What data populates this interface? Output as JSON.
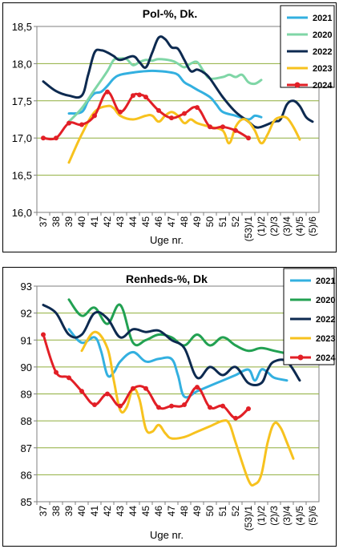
{
  "chart_data": [
    {
      "type": "line",
      "title": "Pol-%, Dk.",
      "xlabel": "Uge nr.",
      "ylabel": "",
      "ylim": [
        16.0,
        18.5
      ],
      "yticks": [
        "16,0",
        "16,5",
        "17,0",
        "17,5",
        "18,0",
        "18,5"
      ],
      "categories": [
        "37",
        "38",
        "39",
        "40",
        "41",
        "42",
        "43",
        "44",
        "45",
        "46",
        "47",
        "48",
        "49",
        "50",
        "51",
        "52",
        "(53)/1",
        "(1)/2",
        "(2)/3",
        "(3)/4",
        "(4)/5",
        "(5)/6"
      ],
      "legend_position": "top-right",
      "grid": true,
      "series": [
        {
          "name": "2021",
          "color": "#33b0e0",
          "marker": false,
          "points": [
            [
              2,
              17.33
            ],
            [
              3,
              17.35
            ],
            [
              3.5,
              17.5
            ],
            [
              4,
              17.6
            ],
            [
              4.5,
              17.62
            ],
            [
              5,
              17.7
            ],
            [
              5.5,
              17.8
            ],
            [
              6,
              17.85
            ],
            [
              7,
              17.88
            ],
            [
              8,
              17.9
            ],
            [
              9,
              17.9
            ],
            [
              10,
              17.88
            ],
            [
              10.5,
              17.85
            ],
            [
              11,
              17.75
            ],
            [
              11.5,
              17.7
            ],
            [
              12,
              17.65
            ],
            [
              13,
              17.55
            ],
            [
              13.5,
              17.45
            ],
            [
              14,
              17.35
            ],
            [
              15,
              17.3
            ],
            [
              16,
              17.25
            ],
            [
              16.5,
              17.3
            ],
            [
              17,
              17.28
            ]
          ]
        },
        {
          "name": "2020",
          "color": "#7fd6a6",
          "marker": false,
          "points": [
            [
              2,
              17.22
            ],
            [
              3,
              17.4
            ],
            [
              4,
              17.65
            ],
            [
              5,
              17.9
            ],
            [
              5.5,
              18.05
            ],
            [
              6,
              18.07
            ],
            [
              6.5,
              18.06
            ],
            [
              7,
              17.98
            ],
            [
              7.5,
              18.02
            ],
            [
              8,
              18.05
            ],
            [
              8.5,
              18.04
            ],
            [
              9,
              18.06
            ],
            [
              10,
              18.04
            ],
            [
              10.5,
              18.0
            ],
            [
              11,
              17.95
            ],
            [
              11.5,
              18.0
            ],
            [
              12,
              18.02
            ],
            [
              12.5,
              17.9
            ],
            [
              13,
              17.8
            ],
            [
              14,
              17.82
            ],
            [
              14.5,
              17.85
            ],
            [
              15,
              17.82
            ],
            [
              15.5,
              17.85
            ],
            [
              16,
              17.75
            ],
            [
              16.5,
              17.73
            ],
            [
              17,
              17.78
            ]
          ]
        },
        {
          "name": "2022",
          "color": "#0d2a50",
          "marker": false,
          "points": [
            [
              0,
              17.76
            ],
            [
              1,
              17.63
            ],
            [
              2,
              17.57
            ],
            [
              3,
              17.57
            ],
            [
              3.5,
              17.85
            ],
            [
              4,
              18.15
            ],
            [
              4.5,
              18.18
            ],
            [
              5,
              18.15
            ],
            [
              5.5,
              18.1
            ],
            [
              6,
              18.05
            ],
            [
              7,
              18.1
            ],
            [
              7.5,
              18.02
            ],
            [
              8,
              17.95
            ],
            [
              8.5,
              18.15
            ],
            [
              9,
              18.35
            ],
            [
              9.5,
              18.33
            ],
            [
              10,
              18.22
            ],
            [
              10.5,
              18.2
            ],
            [
              11,
              18.05
            ],
            [
              11.5,
              17.9
            ],
            [
              12,
              17.92
            ],
            [
              12.5,
              17.88
            ],
            [
              13,
              17.8
            ],
            [
              14,
              17.55
            ],
            [
              15,
              17.35
            ],
            [
              16,
              17.22
            ],
            [
              16.5,
              17.15
            ],
            [
              17,
              17.15
            ],
            [
              18,
              17.22
            ],
            [
              18.5,
              17.25
            ],
            [
              19,
              17.45
            ],
            [
              19.5,
              17.5
            ],
            [
              20,
              17.43
            ],
            [
              20.5,
              17.28
            ],
            [
              21,
              17.22
            ]
          ]
        },
        {
          "name": "2023",
          "color": "#f7c21e",
          "marker": false,
          "points": [
            [
              2,
              16.67
            ],
            [
              3,
              17.05
            ],
            [
              4,
              17.35
            ],
            [
              5,
              17.43
            ],
            [
              5.5,
              17.4
            ],
            [
              6,
              17.3
            ],
            [
              7,
              17.25
            ],
            [
              8,
              17.3
            ],
            [
              8.5,
              17.3
            ],
            [
              9,
              17.22
            ],
            [
              9.5,
              17.3
            ],
            [
              10,
              17.35
            ],
            [
              10.5,
              17.3
            ],
            [
              11,
              17.2
            ],
            [
              11.5,
              17.25
            ],
            [
              12,
              17.2
            ],
            [
              13,
              17.15
            ],
            [
              14,
              17.1
            ],
            [
              14.5,
              16.93
            ],
            [
              15,
              17.15
            ],
            [
              15.5,
              17.25
            ],
            [
              16,
              17.22
            ],
            [
              16.5,
              17.1
            ],
            [
              17,
              16.93
            ],
            [
              17.5,
              17.05
            ],
            [
              18,
              17.23
            ],
            [
              18.5,
              17.28
            ],
            [
              19,
              17.27
            ],
            [
              19.5,
              17.15
            ],
            [
              20,
              16.98
            ]
          ]
        },
        {
          "name": "2024",
          "color": "#e21f26",
          "marker": true,
          "points": [
            [
              0,
              17.0
            ],
            [
              1,
              17.0
            ],
            [
              2,
              17.2
            ],
            [
              3,
              17.18
            ],
            [
              4,
              17.3
            ],
            [
              5,
              17.62
            ],
            [
              6,
              17.35
            ],
            [
              7,
              17.57
            ],
            [
              7.5,
              17.58
            ],
            [
              8,
              17.55
            ],
            [
              9,
              17.37
            ],
            [
              10,
              17.27
            ],
            [
              11,
              17.33
            ],
            [
              12,
              17.41
            ],
            [
              13,
              17.15
            ],
            [
              14,
              17.15
            ],
            [
              15,
              17.1
            ],
            [
              16,
              17.0
            ]
          ]
        }
      ]
    },
    {
      "type": "line",
      "title": "Renheds-%, Dk",
      "xlabel": "Uge nr.",
      "ylabel": "",
      "ylim": [
        85,
        93
      ],
      "yticks": [
        "85",
        "86",
        "87",
        "88",
        "89",
        "90",
        "91",
        "92",
        "93"
      ],
      "categories": [
        "37",
        "38",
        "39",
        "40",
        "41",
        "42",
        "43",
        "44",
        "45",
        "46",
        "47",
        "48",
        "49",
        "50",
        "51",
        "52",
        "(53)/1",
        "(1)/2",
        "(2)/3",
        "(3)/4",
        "(4)/5",
        "(5)/6"
      ],
      "legend_position": "top-right",
      "grid": true,
      "series": [
        {
          "name": "2021",
          "color": "#33b0e0",
          "marker": false,
          "points": [
            [
              2,
              91.4
            ],
            [
              3,
              90.9
            ],
            [
              4,
              91.1
            ],
            [
              4.5,
              90.6
            ],
            [
              5,
              89.7
            ],
            [
              5.5,
              89.8
            ],
            [
              6,
              90.2
            ],
            [
              7,
              90.55
            ],
            [
              8,
              90.2
            ],
            [
              9,
              90.3
            ],
            [
              10,
              90.3
            ],
            [
              10.5,
              89.7
            ],
            [
              11,
              88.9
            ],
            [
              12,
              89.1
            ],
            [
              13,
              89.3
            ],
            [
              14,
              89.5
            ],
            [
              15,
              89.7
            ],
            [
              16,
              89.9
            ],
            [
              16.5,
              89.5
            ],
            [
              17,
              89.9
            ],
            [
              17.5,
              89.8
            ],
            [
              18,
              89.6
            ],
            [
              19,
              89.5
            ]
          ]
        },
        {
          "name": "2020",
          "color": "#22a152",
          "marker": false,
          "points": [
            [
              2,
              92.5
            ],
            [
              3,
              91.9
            ],
            [
              4,
              92.2
            ],
            [
              5,
              91.6
            ],
            [
              6,
              92.3
            ],
            [
              7,
              90.9
            ],
            [
              8,
              91.0
            ],
            [
              9,
              91.2
            ],
            [
              10,
              91.1
            ],
            [
              11,
              90.8
            ],
            [
              12,
              91.2
            ],
            [
              13,
              90.8
            ],
            [
              14,
              91.1
            ],
            [
              15,
              90.8
            ],
            [
              16,
              90.6
            ],
            [
              17,
              90.7
            ],
            [
              18,
              90.6
            ],
            [
              19,
              90.5
            ]
          ]
        },
        {
          "name": "2022",
          "color": "#0d2a50",
          "marker": false,
          "points": [
            [
              0,
              92.3
            ],
            [
              1,
              92.0
            ],
            [
              2,
              91.2
            ],
            [
              3,
              91.2
            ],
            [
              4,
              92.0
            ],
            [
              5,
              91.8
            ],
            [
              6,
              91.1
            ],
            [
              7,
              91.4
            ],
            [
              8,
              91.3
            ],
            [
              9,
              91.35
            ],
            [
              10,
              91.0
            ],
            [
              11,
              90.7
            ],
            [
              12,
              89.6
            ],
            [
              13,
              90.0
            ],
            [
              14,
              89.7
            ],
            [
              15,
              90.0
            ],
            [
              16,
              89.4
            ],
            [
              17,
              89.4
            ],
            [
              17.5,
              89.9
            ],
            [
              18,
              90.2
            ],
            [
              19,
              90.2
            ],
            [
              20,
              89.5
            ]
          ]
        },
        {
          "name": "2023",
          "color": "#f7c21e",
          "marker": false,
          "points": [
            [
              3,
              90.6
            ],
            [
              4,
              91.3
            ],
            [
              5,
              90.7
            ],
            [
              5.5,
              89.5
            ],
            [
              6,
              88.4
            ],
            [
              6.5,
              88.5
            ],
            [
              7,
              89.2
            ],
            [
              7.5,
              88.8
            ],
            [
              8,
              87.7
            ],
            [
              8.5,
              87.6
            ],
            [
              9,
              87.85
            ],
            [
              9.5,
              87.55
            ],
            [
              10,
              87.35
            ],
            [
              11,
              87.4
            ],
            [
              12,
              87.6
            ],
            [
              13,
              87.8
            ],
            [
              14,
              88.0
            ],
            [
              14.5,
              87.9
            ],
            [
              15,
              87.2
            ],
            [
              16,
              85.8
            ],
            [
              16.5,
              85.65
            ],
            [
              17,
              86.0
            ],
            [
              17.5,
              87.2
            ],
            [
              18,
              87.9
            ],
            [
              18.5,
              87.75
            ],
            [
              19,
              87.2
            ],
            [
              19.5,
              86.6
            ]
          ]
        },
        {
          "name": "2024",
          "color": "#e21f26",
          "marker": true,
          "points": [
            [
              0,
              91.2
            ],
            [
              1,
              89.8
            ],
            [
              2,
              89.6
            ],
            [
              3,
              89.1
            ],
            [
              4,
              88.6
            ],
            [
              5,
              89.0
            ],
            [
              6,
              88.55
            ],
            [
              7,
              89.2
            ],
            [
              8,
              89.2
            ],
            [
              9,
              88.5
            ],
            [
              10,
              88.55
            ],
            [
              11,
              88.6
            ],
            [
              12,
              89.25
            ],
            [
              13,
              88.5
            ],
            [
              14,
              88.55
            ],
            [
              15,
              88.1
            ],
            [
              16,
              88.45
            ]
          ]
        }
      ]
    }
  ]
}
